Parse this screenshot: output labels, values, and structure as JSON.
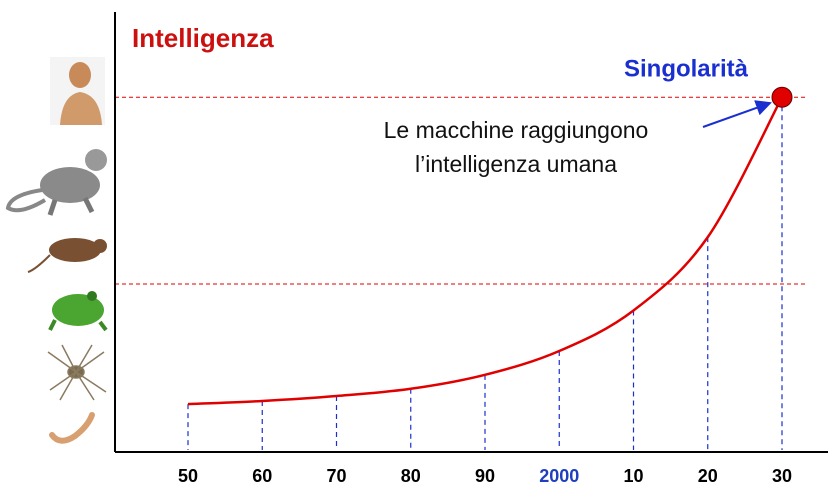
{
  "chart_data": {
    "type": "line",
    "y_label": "Intelligenza",
    "categories": [
      "50",
      "60",
      "70",
      "80",
      "90",
      "2000",
      "10",
      "20",
      "30"
    ],
    "series": [
      {
        "name": "Intelligenza",
        "color": "#e00000",
        "values": [
          10.2,
          10.9,
          12,
          13.6,
          16.7,
          22,
          31,
          47.3,
          78.4
        ]
      }
    ],
    "ylim": [
      0,
      100
    ],
    "reference_lines": [
      78.4,
      36.9
    ],
    "reference_color": "#e00000",
    "drop_line_color": "#1a2fcf",
    "highlight_category": {
      "index": 5,
      "color": "#1f3fbf"
    },
    "marker": {
      "index": 8,
      "color": "#e00000"
    },
    "annotations": {
      "singularity": "Singolarità",
      "note_line1": "Le macchine raggiungono",
      "note_line2": "l’intelligenza umana"
    }
  }
}
